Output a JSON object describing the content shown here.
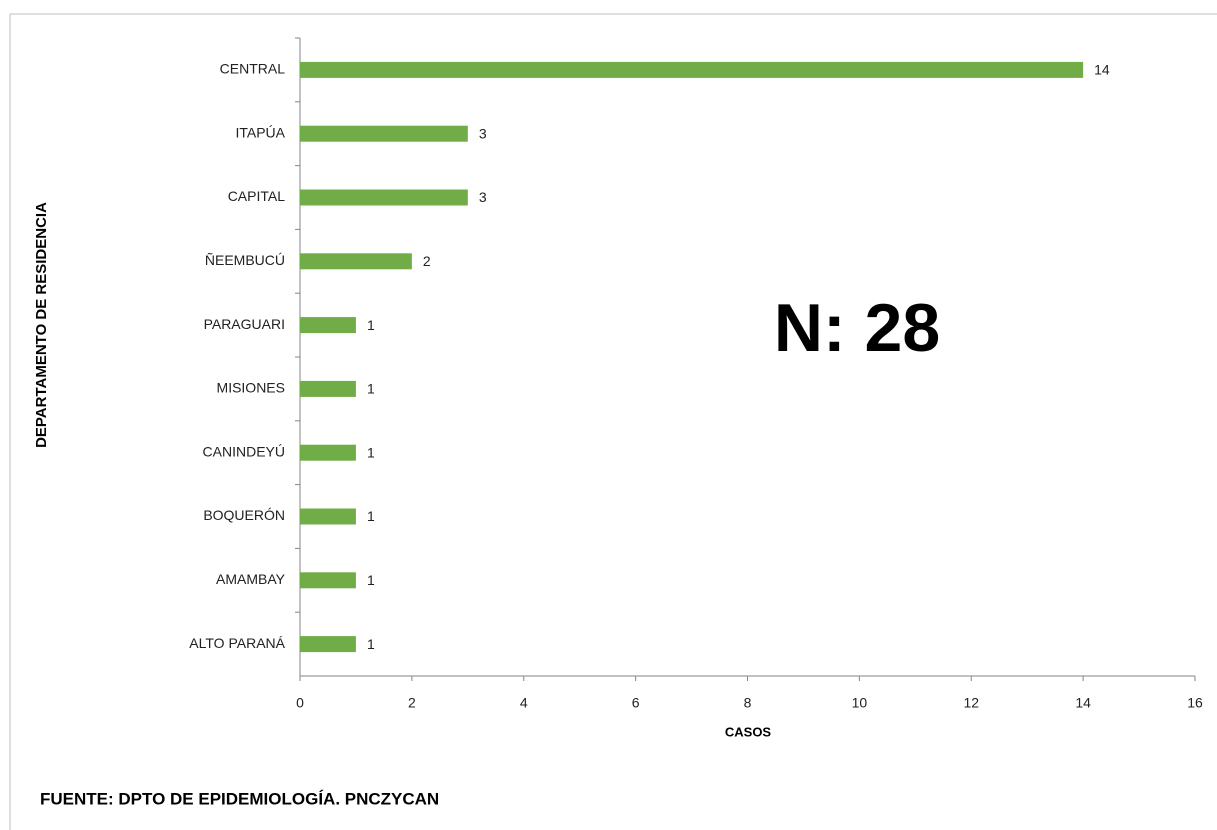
{
  "chart_data": {
    "type": "bar",
    "orientation": "horizontal",
    "annotation": "N: 28",
    "y_label": "DEPARTAMENTO DE RESIDENCIA",
    "x_label": "CASOS",
    "source": "FUENTE: DPTO DE EPIDEMIOLOGÍA.  PNCZYCAN",
    "categories": [
      "CENTRAL",
      "ITAPÚA",
      "CAPITAL",
      "ÑEEMBUCÚ",
      "PARAGUARI",
      "MISIONES",
      "CANINDEYÚ",
      "BOQUERÓN",
      "AMAMBAY",
      "ALTO PARANÁ"
    ],
    "values": [
      14,
      3,
      3,
      2,
      1,
      1,
      1,
      1,
      1,
      1
    ],
    "color": "#70ad47",
    "xlim": [
      0,
      16
    ],
    "xticks": [
      0,
      2,
      4,
      6,
      8,
      10,
      12,
      14,
      16
    ]
  }
}
